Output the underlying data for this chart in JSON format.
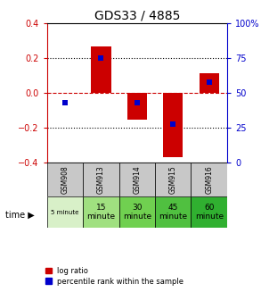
{
  "title": "GDS33 / 4885",
  "categories": [
    "GSM908",
    "GSM913",
    "GSM914",
    "GSM915",
    "GSM916"
  ],
  "time_labels": [
    "5 minute",
    "15\nminute",
    "30\nminute",
    "45\nminute",
    "60\nminute"
  ],
  "time_colors": [
    "#d8f0c8",
    "#a0e080",
    "#70d050",
    "#50c040",
    "#30b030"
  ],
  "log_ratios": [
    0.0,
    0.265,
    -0.155,
    -0.37,
    0.115
  ],
  "percentile_ranks": [
    43,
    75,
    43,
    28,
    58
  ],
  "ylim_left": [
    -0.4,
    0.4
  ],
  "ylim_right": [
    0,
    100
  ],
  "yticks_left": [
    -0.4,
    -0.2,
    0.0,
    0.2,
    0.4
  ],
  "yticks_right": [
    0,
    25,
    50,
    75,
    100
  ],
  "bar_color": "#cc0000",
  "dot_color": "#0000cc",
  "zero_line_color": "#cc0000",
  "bg_color": "#ffffff",
  "left_tick_color": "#cc0000",
  "right_tick_color": "#0000cc",
  "gsm_bg": "#c8c8c8",
  "bar_width": 0.55
}
